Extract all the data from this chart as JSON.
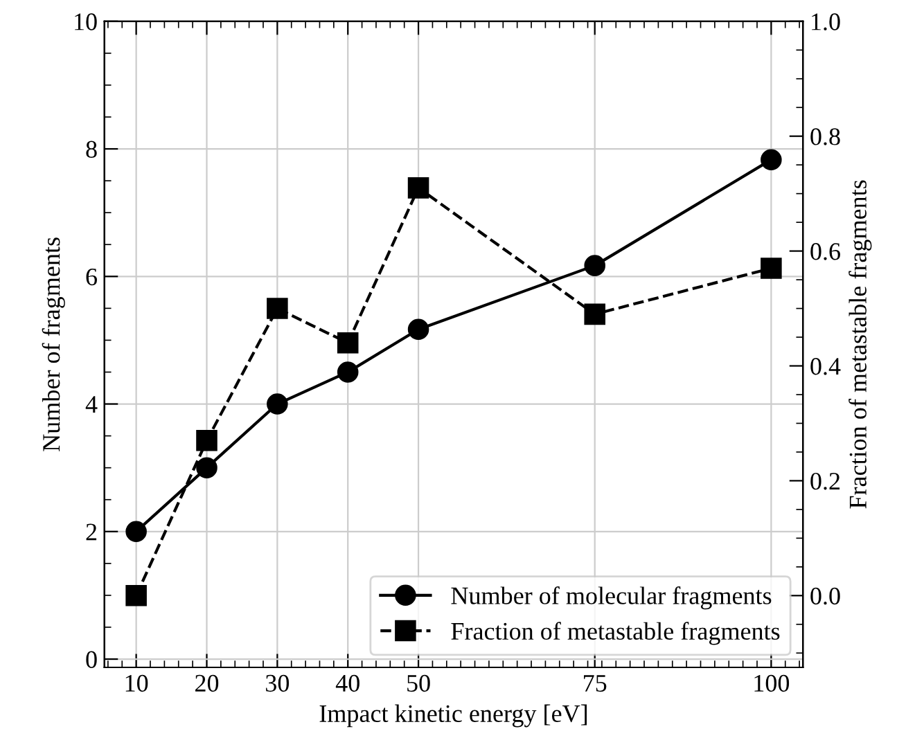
{
  "chart_data": {
    "type": "line",
    "xlabel": "Impact kinetic energy [eV]",
    "ylabel": "Number of fragments",
    "y2label": "Fraction of metastable fragments",
    "x": [
      10,
      20,
      30,
      40,
      50,
      75,
      100
    ],
    "series": [
      {
        "name": "Number of molecular fragments",
        "color": "#000000",
        "values": [
          2,
          3,
          4,
          4.5,
          5.17,
          6.17,
          7.83
        ],
        "marker": "circle",
        "line_style": "solid"
      },
      {
        "name": "Fraction of metastable fragments",
        "color": "#000000",
        "values": [
          0,
          0.27,
          0.5,
          0.44,
          0.71,
          0.49,
          0.57
        ],
        "marker": "square",
        "line_style": "dashed",
        "axis": "y2"
      }
    ],
    "xlim": [
      5.5,
      104.5
    ],
    "xticks": [
      10,
      20,
      30,
      40,
      50,
      75,
      100
    ],
    "ylim": [
      -0.13,
      10
    ],
    "yticks": [
      0,
      2,
      4,
      6,
      8,
      10
    ],
    "y2lim": [
      -0.125,
      1.0
    ],
    "y2ticks": [
      {
        "value": 0,
        "label": "0.0"
      },
      0.2,
      0.4,
      0.6,
      0.8,
      {
        "value": 1,
        "label": "1.0"
      }
    ],
    "grid": true,
    "legend": "bottom right"
  }
}
